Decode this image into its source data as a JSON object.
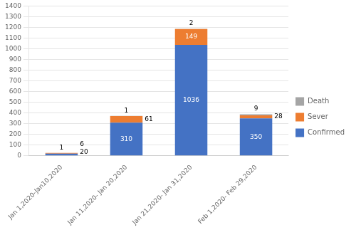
{
  "chart_data": {
    "type": "bar",
    "stacked": true,
    "categories": [
      "Jan 1,2020-Jan10,2020",
      "Jan 11,2020- Jan 20,2020",
      "Jan 21,2020- Jan 31,2020",
      "Feb 1,2020- Feb 29,2020"
    ],
    "series": [
      {
        "name": "Confirmed",
        "color": "#4472C4",
        "values": [
          20,
          310,
          1036,
          350
        ]
      },
      {
        "name": "Sever",
        "color": "#ED7D31",
        "values": [
          6,
          61,
          149,
          28
        ]
      },
      {
        "name": "Death",
        "color": "#A5A5A5",
        "values": [
          1,
          1,
          2,
          9
        ]
      }
    ],
    "ylim": [
      0,
      1400
    ],
    "yticks": [
      0,
      100,
      200,
      300,
      400,
      500,
      600,
      700,
      800,
      900,
      1000,
      1100,
      1200,
      1300,
      1400
    ],
    "grid": true,
    "legend": "right",
    "data_labels": true
  }
}
